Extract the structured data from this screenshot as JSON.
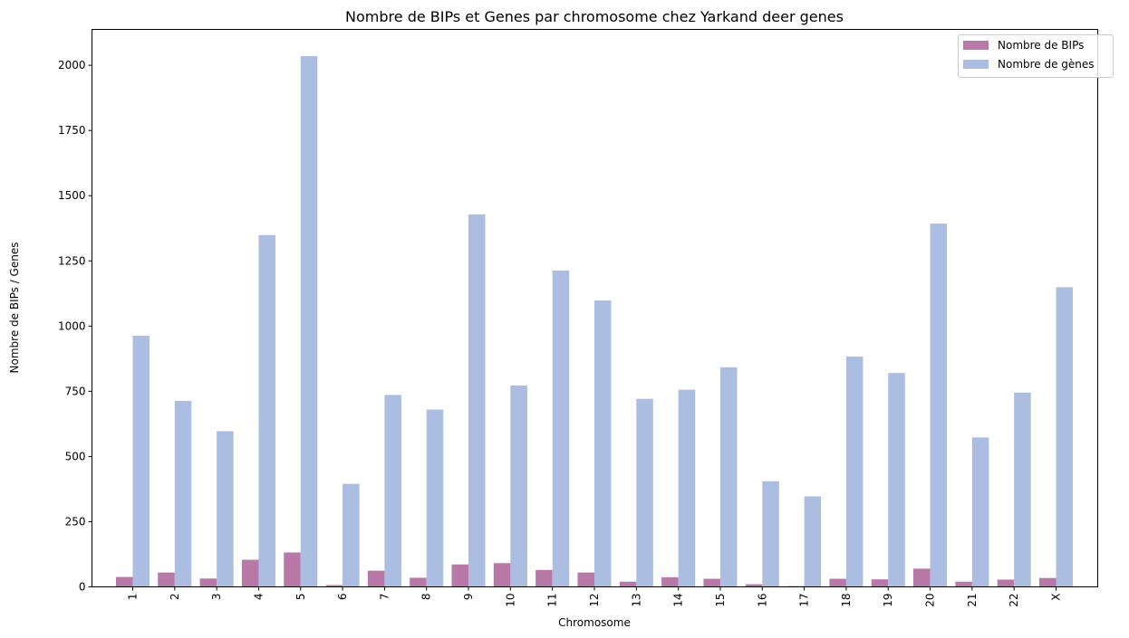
{
  "chart_data": {
    "type": "bar",
    "title": "Nombre de BIPs et Genes par chromosome chez Yarkand deer genes",
    "xlabel": "Chromosome",
    "ylabel": "Nombre de BIPs / Genes",
    "categories": [
      "1",
      "2",
      "3",
      "4",
      "5",
      "6",
      "7",
      "8",
      "9",
      "10",
      "11",
      "12",
      "13",
      "14",
      "15",
      "16",
      "17",
      "18",
      "19",
      "20",
      "21",
      "22",
      "X"
    ],
    "series": [
      {
        "name": "Nombre de BIPs",
        "color": "#b878a8",
        "values": [
          38,
          55,
          32,
          104,
          132,
          7,
          62,
          35,
          86,
          91,
          65,
          55,
          20,
          37,
          31,
          10,
          3,
          31,
          29,
          70,
          20,
          28,
          34
        ]
      },
      {
        "name": "Nombre de gènes",
        "color": "#abbde0",
        "values": [
          963,
          713,
          597,
          1349,
          2035,
          395,
          736,
          680,
          1428,
          772,
          1213,
          1098,
          721,
          756,
          842,
          405,
          347,
          883,
          820,
          1393,
          573,
          745,
          1149
        ]
      }
    ],
    "ylim": [
      0,
      2137.5
    ],
    "yticks": [
      "0",
      "250",
      "500",
      "750",
      "1000",
      "1250",
      "1500",
      "1750",
      "2000"
    ],
    "xtick_rotation": "vertical",
    "legend_position": "top-right",
    "grid": false
  }
}
